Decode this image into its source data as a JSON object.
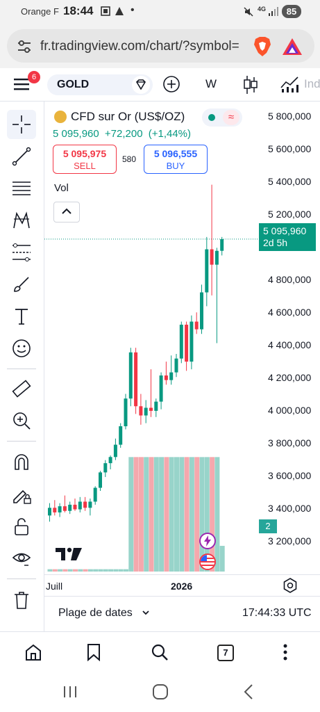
{
  "status_bar": {
    "carrier": "Orange F",
    "time": "18:44",
    "network": "4G",
    "battery": "85"
  },
  "browser": {
    "url": "fr.tradingview.com/chart/?symbol="
  },
  "toolbar": {
    "menu_badge": "6",
    "symbol": "GOLD",
    "interval": "W",
    "indicators_label": "Ind"
  },
  "chart_header": {
    "title": "CFD sur Or (US$/OZ)",
    "last": "5 095,960",
    "change": "+72,200",
    "change_pct": "(+1,44%)",
    "sell_price": "5 095,975",
    "sell_label": "SELL",
    "spread": "580",
    "buy_price": "5 096,555",
    "buy_label": "BUY",
    "volume_label": "Vol"
  },
  "price_axis": {
    "labels": [
      "5 800,000",
      "5 600,000",
      "5 400,000",
      "5 200,000",
      "4 800,000",
      "4 600,000",
      "4 400,000",
      "4 200,000",
      "4 000,000",
      "3 800,000",
      "3 600,000",
      "3 400,000",
      "3 200,000"
    ],
    "last_price": "5 095,960",
    "countdown": "2d 5h",
    "volume_tag": "2"
  },
  "time_axis": {
    "labels": [
      "Juill",
      "2026"
    ]
  },
  "footer": {
    "date_range": "Plage de dates",
    "clock": "17:44:33 UTC"
  },
  "bottom_nav": {
    "tab_count": "7"
  },
  "colors": {
    "up": "#089981",
    "down": "#f23645",
    "volume_up": "#98d4ca",
    "volume_down": "#f5a8ad",
    "accent": "#2962ff"
  },
  "chart_data": {
    "type": "candlestick",
    "interval": "W",
    "ylim": [
      3130000,
      5900000
    ],
    "candles": [
      {
        "o": 3300000,
        "h": 3380000,
        "l": 3260000,
        "c": 3350000,
        "v": 0.02
      },
      {
        "o": 3350000,
        "h": 3400000,
        "l": 3300000,
        "c": 3320000,
        "v": 0.02
      },
      {
        "o": 3320000,
        "h": 3380000,
        "l": 3290000,
        "c": 3360000,
        "v": 0.02
      },
      {
        "o": 3360000,
        "h": 3430000,
        "l": 3320000,
        "c": 3330000,
        "v": 0.02
      },
      {
        "o": 3330000,
        "h": 3390000,
        "l": 3310000,
        "c": 3370000,
        "v": 0.02
      },
      {
        "o": 3370000,
        "h": 3410000,
        "l": 3330000,
        "c": 3340000,
        "v": 0.02
      },
      {
        "o": 3340000,
        "h": 3420000,
        "l": 3320000,
        "c": 3390000,
        "v": 0.02
      },
      {
        "o": 3390000,
        "h": 3420000,
        "l": 3330000,
        "c": 3350000,
        "v": 0.02
      },
      {
        "o": 3350000,
        "h": 3410000,
        "l": 3300000,
        "c": 3390000,
        "v": 0.02
      },
      {
        "o": 3390000,
        "h": 3490000,
        "l": 3370000,
        "c": 3480000,
        "v": 0.02
      },
      {
        "o": 3480000,
        "h": 3590000,
        "l": 3460000,
        "c": 3580000,
        "v": 0.02
      },
      {
        "o": 3580000,
        "h": 3660000,
        "l": 3550000,
        "c": 3640000,
        "v": 0.02
      },
      {
        "o": 3640000,
        "h": 3690000,
        "l": 3600000,
        "c": 3680000,
        "v": 0.02
      },
      {
        "o": 3680000,
        "h": 3800000,
        "l": 3660000,
        "c": 3760000,
        "v": 0.02
      },
      {
        "o": 3760000,
        "h": 3900000,
        "l": 3740000,
        "c": 3880000,
        "v": 0.02
      },
      {
        "o": 3880000,
        "h": 4090000,
        "l": 3860000,
        "c": 4060000,
        "v": 0.02
      },
      {
        "o": 4060000,
        "h": 4390000,
        "l": 4010000,
        "c": 4360000,
        "v": 0.98
      },
      {
        "o": 4360000,
        "h": 4390000,
        "l": 3960000,
        "c": 4010000,
        "v": 0.98
      },
      {
        "o": 4010000,
        "h": 4090000,
        "l": 3890000,
        "c": 3950000,
        "v": 0.98
      },
      {
        "o": 3950000,
        "h": 4050000,
        "l": 3900000,
        "c": 4000000,
        "v": 0.98
      },
      {
        "o": 4000000,
        "h": 4250000,
        "l": 3940000,
        "c": 3980000,
        "v": 0.98
      },
      {
        "o": 3980000,
        "h": 4060000,
        "l": 3940000,
        "c": 4040000,
        "v": 0.98
      },
      {
        "o": 4040000,
        "h": 4230000,
        "l": 3990000,
        "c": 4210000,
        "v": 0.98
      },
      {
        "o": 4210000,
        "h": 4300000,
        "l": 4150000,
        "c": 4180000,
        "v": 0.98
      },
      {
        "o": 4180000,
        "h": 4340000,
        "l": 4150000,
        "c": 4230000,
        "v": 0.98
      },
      {
        "o": 4230000,
        "h": 4350000,
        "l": 4200000,
        "c": 4320000,
        "v": 0.98
      },
      {
        "o": 4320000,
        "h": 4560000,
        "l": 4290000,
        "c": 4540000,
        "v": 0.98
      },
      {
        "o": 4540000,
        "h": 4560000,
        "l": 4240000,
        "c": 4300000,
        "v": 0.98
      },
      {
        "o": 4300000,
        "h": 4600000,
        "l": 4250000,
        "c": 4560000,
        "v": 0.98
      },
      {
        "o": 4560000,
        "h": 4620000,
        "l": 4480000,
        "c": 4510000,
        "v": 0.98
      },
      {
        "o": 4510000,
        "h": 4800000,
        "l": 4480000,
        "c": 4750000,
        "v": 0.98
      },
      {
        "o": 4750000,
        "h": 5110000,
        "l": 4660000,
        "c": 5030000,
        "v": 0.98
      },
      {
        "o": 5030000,
        "h": 5450000,
        "l": 4730000,
        "c": 4930000,
        "v": 0.98
      },
      {
        "o": 4930000,
        "h": 5040000,
        "l": 4420000,
        "c": 5020000,
        "v": 0.98
      },
      {
        "o": 5020000,
        "h": 5110000,
        "l": 4990000,
        "c": 5095960,
        "v": 0.22
      }
    ]
  }
}
